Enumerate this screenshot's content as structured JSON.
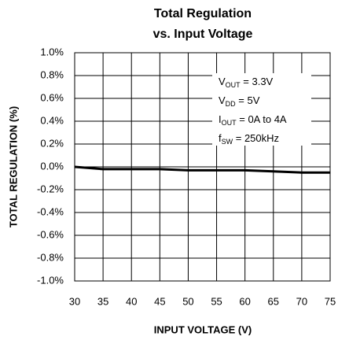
{
  "chart_data": {
    "type": "line",
    "title": [
      "Total Regulation",
      "vs. Input Voltage"
    ],
    "y_label": "TOTAL REGULATION (%)",
    "x_label": "INPUT VOLTAGE (V)",
    "x": [
      30,
      35,
      40,
      45,
      50,
      55,
      60,
      65,
      70,
      75
    ],
    "values": [
      0.0,
      -0.02,
      -0.02,
      -0.02,
      -0.03,
      -0.03,
      -0.03,
      -0.04,
      -0.05,
      -0.05
    ],
    "color": "#000000",
    "xlim": [
      30,
      75
    ],
    "xticks": [
      30,
      35,
      40,
      45,
      50,
      55,
      60,
      65,
      70,
      75
    ],
    "ylim": [
      -1.0,
      1.0
    ],
    "yticks": [
      {
        "value": -1.0,
        "label": "-1.0%"
      },
      {
        "value": -0.8,
        "label": "-0.8%"
      },
      {
        "value": -0.6,
        "label": "-0.6%"
      },
      {
        "value": -0.4,
        "label": "-0.4%"
      },
      {
        "value": -0.2,
        "label": "-0.2%"
      },
      {
        "value": 0.0,
        "label": "0.0%"
      },
      {
        "value": 0.2,
        "label": "0.2%"
      },
      {
        "value": 0.4,
        "label": "0.4%"
      },
      {
        "value": 0.6,
        "label": "0.6%"
      },
      {
        "value": 0.8,
        "label": "0.8%"
      },
      {
        "value": 1.0,
        "label": "1.0%"
      }
    ],
    "grid": true,
    "annotations": [
      {
        "main": "V",
        "sub": "OUT",
        "rest": " = 3.3V"
      },
      {
        "main": "V",
        "sub": "DD",
        "rest": " = 5V"
      },
      {
        "main": "I",
        "sub": "OUT",
        "rest": " = 0A to 4A"
      },
      {
        "main": "f",
        "sub": "SW",
        "rest": " = 250kHz"
      }
    ]
  }
}
